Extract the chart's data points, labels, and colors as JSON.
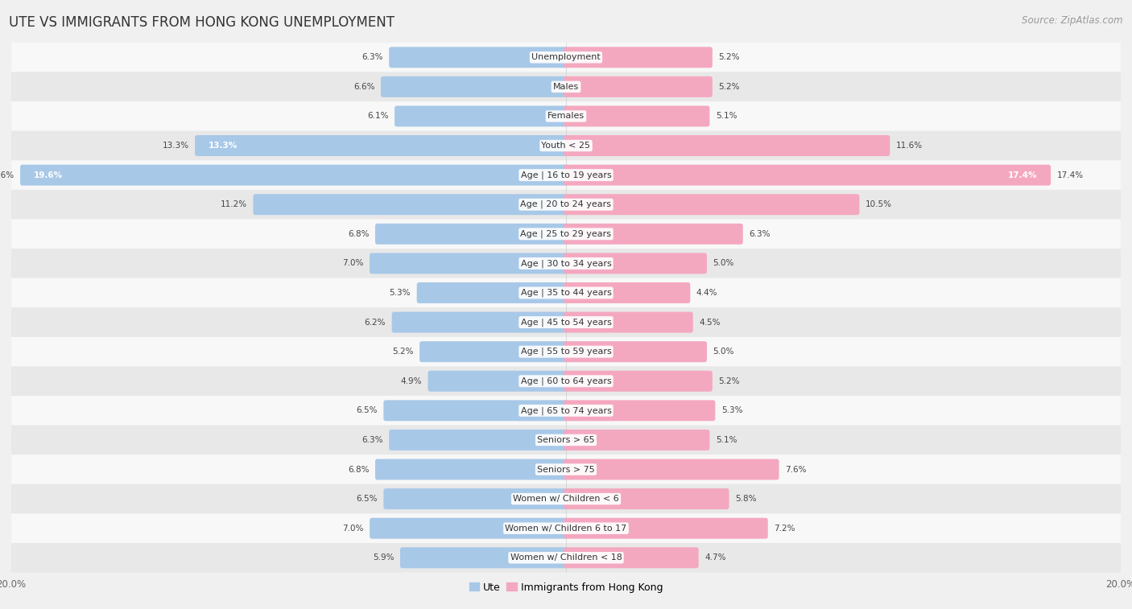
{
  "title": "UTE VS IMMIGRANTS FROM HONG KONG UNEMPLOYMENT",
  "source": "Source: ZipAtlas.com",
  "categories": [
    "Unemployment",
    "Males",
    "Females",
    "Youth < 25",
    "Age | 16 to 19 years",
    "Age | 20 to 24 years",
    "Age | 25 to 29 years",
    "Age | 30 to 34 years",
    "Age | 35 to 44 years",
    "Age | 45 to 54 years",
    "Age | 55 to 59 years",
    "Age | 60 to 64 years",
    "Age | 65 to 74 years",
    "Seniors > 65",
    "Seniors > 75",
    "Women w/ Children < 6",
    "Women w/ Children 6 to 17",
    "Women w/ Children < 18"
  ],
  "ute_values": [
    6.3,
    6.6,
    6.1,
    13.3,
    19.6,
    11.2,
    6.8,
    7.0,
    5.3,
    6.2,
    5.2,
    4.9,
    6.5,
    6.3,
    6.8,
    6.5,
    7.0,
    5.9
  ],
  "hk_values": [
    5.2,
    5.2,
    5.1,
    11.6,
    17.4,
    10.5,
    6.3,
    5.0,
    4.4,
    4.5,
    5.0,
    5.2,
    5.3,
    5.1,
    7.6,
    5.8,
    7.2,
    4.7
  ],
  "ute_color": "#a8c8e8",
  "hk_color": "#f4a8c0",
  "axis_limit": 20.0,
  "bg_color": "#f0f0f0",
  "row_color_odd": "#f8f8f8",
  "row_color_even": "#e8e8e8",
  "title_fontsize": 12,
  "source_fontsize": 8.5,
  "label_fontsize": 8,
  "value_fontsize": 7.5,
  "legend_fontsize": 9,
  "axis_label_fontsize": 8.5
}
